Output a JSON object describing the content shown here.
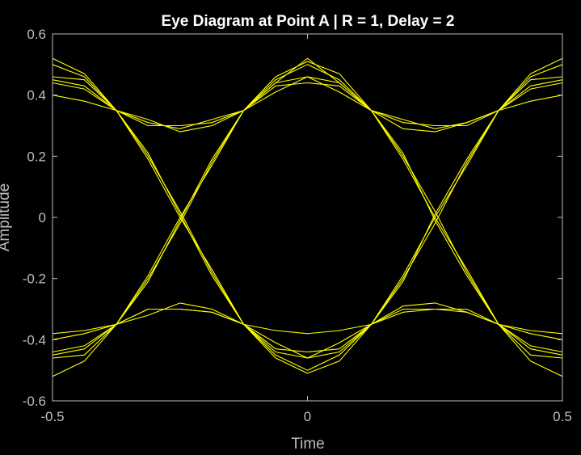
{
  "chart_data": {
    "type": "line",
    "title": "Eye Diagram at Point A | R = 1, Delay = 2",
    "xlabel": "Time",
    "ylabel": "Amplitude",
    "xlim": [
      -0.5,
      0.5
    ],
    "ylim": [
      -0.6,
      0.6
    ],
    "xticks": [
      -0.5,
      0,
      0.5
    ],
    "xtick_labels": [
      "-0.5",
      "0",
      "0.5"
    ],
    "yticks": [
      0.6,
      0.4,
      0.2,
      0,
      -0.2,
      -0.4,
      -0.6
    ],
    "ytick_labels": [
      "0.6",
      "0.4",
      "0.2",
      "0",
      "-0.2",
      "-0.4",
      "-0.6"
    ],
    "grid": false,
    "background": "#000000",
    "trace_color": "#ffff00",
    "x": [
      -0.5,
      -0.4375,
      -0.375,
      -0.3125,
      -0.25,
      -0.1875,
      -0.125,
      -0.0625,
      0,
      0.0625,
      0.125,
      0.1875,
      0.25,
      0.3125,
      0.375,
      0.4375,
      0.5
    ],
    "series": [
      {
        "values": [
          0.52,
          0.47,
          0.35,
          0.21,
          0.01,
          -0.19,
          -0.35,
          -0.46,
          -0.51,
          -0.47,
          -0.35,
          -0.21,
          0.01,
          0.19,
          0.35,
          0.47,
          0.52
        ]
      },
      {
        "values": [
          0.46,
          0.45,
          0.35,
          0.2,
          0.02,
          -0.18,
          -0.35,
          -0.45,
          -0.5,
          -0.45,
          -0.35,
          -0.2,
          -0.02,
          0.18,
          0.35,
          0.45,
          0.46
        ]
      },
      {
        "values": [
          0.45,
          0.43,
          0.35,
          0.19,
          0.0,
          -0.17,
          -0.35,
          -0.44,
          -0.46,
          -0.44,
          -0.35,
          -0.19,
          0.0,
          0.17,
          0.35,
          0.43,
          0.45
        ]
      },
      {
        "values": [
          0.4,
          0.38,
          0.35,
          0.3,
          0.3,
          0.31,
          0.35,
          0.43,
          0.44,
          0.43,
          0.35,
          0.31,
          0.3,
          0.3,
          0.35,
          0.38,
          0.4
        ]
      },
      {
        "values": [
          0.44,
          0.42,
          0.35,
          0.32,
          0.28,
          0.3,
          0.35,
          0.41,
          0.46,
          0.41,
          0.35,
          0.29,
          0.28,
          0.31,
          0.35,
          0.42,
          0.44
        ]
      },
      {
        "values": [
          -0.52,
          -0.47,
          -0.35,
          -0.21,
          -0.01,
          0.19,
          0.35,
          0.46,
          0.51,
          0.47,
          0.35,
          0.21,
          -0.01,
          -0.19,
          -0.35,
          -0.47,
          -0.52
        ]
      },
      {
        "values": [
          -0.46,
          -0.45,
          -0.35,
          -0.2,
          -0.02,
          0.18,
          0.35,
          0.45,
          0.5,
          0.45,
          0.35,
          0.2,
          0.02,
          -0.18,
          -0.35,
          -0.45,
          -0.46
        ]
      },
      {
        "values": [
          -0.45,
          -0.43,
          -0.35,
          -0.19,
          0.0,
          0.17,
          0.35,
          0.44,
          0.46,
          0.44,
          0.35,
          0.19,
          0.0,
          -0.17,
          -0.35,
          -0.43,
          -0.45
        ]
      },
      {
        "values": [
          -0.4,
          -0.38,
          -0.35,
          -0.3,
          -0.3,
          -0.31,
          -0.35,
          -0.43,
          -0.44,
          -0.43,
          -0.35,
          -0.31,
          -0.3,
          -0.3,
          -0.35,
          -0.38,
          -0.4
        ]
      },
      {
        "values": [
          -0.44,
          -0.42,
          -0.35,
          -0.32,
          -0.28,
          -0.3,
          -0.35,
          -0.41,
          -0.46,
          -0.41,
          -0.35,
          -0.29,
          -0.28,
          -0.31,
          -0.35,
          -0.42,
          -0.44
        ]
      },
      {
        "values": [
          -0.38,
          -0.37,
          -0.35,
          -0.3,
          -0.3,
          -0.31,
          -0.35,
          -0.37,
          -0.38,
          -0.37,
          -0.35,
          -0.3,
          -0.3,
          -0.31,
          -0.35,
          -0.37,
          -0.38
        ]
      },
      {
        "values": [
          0.5,
          0.46,
          0.35,
          0.31,
          0.29,
          0.32,
          0.35,
          0.44,
          0.52,
          0.44,
          0.35,
          0.32,
          0.29,
          0.31,
          0.35,
          0.46,
          0.5
        ]
      }
    ]
  }
}
